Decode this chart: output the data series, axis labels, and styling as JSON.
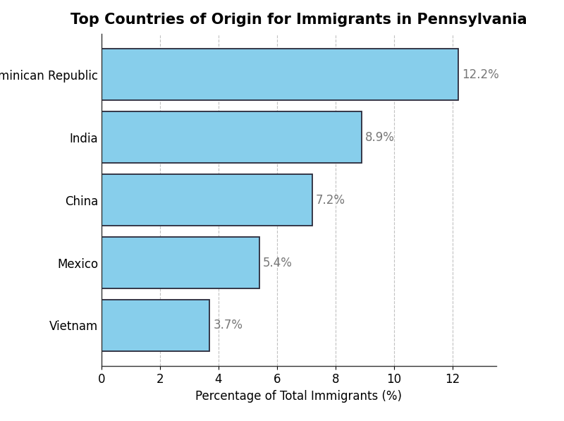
{
  "title": "Top Countries of Origin for Immigrants in Pennsylvania",
  "categories": [
    "Vietnam",
    "Mexico",
    "China",
    "India",
    "Dominican Republic"
  ],
  "values": [
    3.7,
    5.4,
    7.2,
    8.9,
    12.2
  ],
  "bar_color": "#87CEEB",
  "bar_edgecolor": "#2a2a3a",
  "xlabel": "Percentage of Total Immigrants (%)",
  "xlim": [
    0,
    13.5
  ],
  "xticks": [
    0,
    2,
    4,
    6,
    8,
    10,
    12
  ],
  "label_fontsize": 12,
  "title_fontsize": 15,
  "tick_fontsize": 12,
  "background_color": "#ffffff",
  "grid_color": "#bbbbbb",
  "grid_style": "--",
  "bar_height": 0.82,
  "annotation_color": "#777777"
}
